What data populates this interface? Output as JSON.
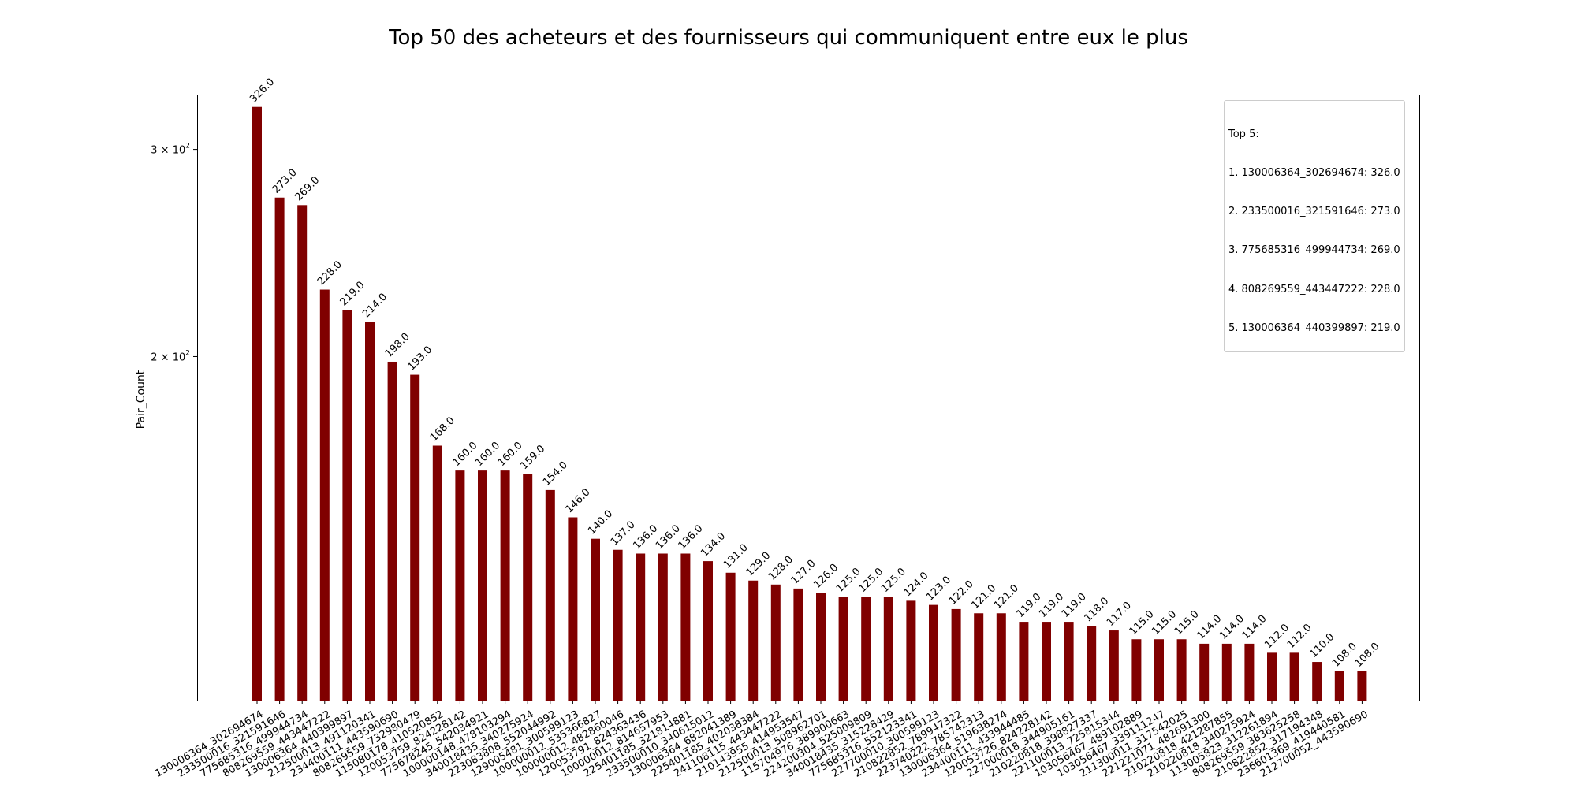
{
  "chart_data": {
    "type": "bar",
    "title": "Top 50 des acheteurs et des fournisseurs qui communiquent entre eux le plus",
    "xlabel": "",
    "ylabel": "Pair_Count",
    "yscale": "log",
    "ylim": [
      102,
      334
    ],
    "ytick_labels": [
      {
        "value": 200,
        "base": "2 × 10",
        "exp": "2"
      },
      {
        "value": 300,
        "base": "3 × 10",
        "exp": "2"
      }
    ],
    "bar_color": "#800000",
    "grid": false,
    "categories": [
      "130006364_302694674",
      "233500016_321591646",
      "775685316_499944734",
      "808269559_443447222",
      "130006364_440399897",
      "212500013_491120341",
      "234400111_443590690",
      "808269559_732980479",
      "115080178_410520852",
      "120053759_824228142",
      "775678245_542034921",
      "100000148_478103294",
      "340018435_340275924",
      "223083808_552044992",
      "129005481_300599123",
      "100000012_535366827",
      "100000012_482860046",
      "120053791_824363436",
      "100000012_814657953",
      "225401185_321814881",
      "233500010_340615012",
      "130006364_682041389",
      "225401185_402038384",
      "241108115_443447222",
      "210143955_414953547",
      "212500013_508962701",
      "115704976_389900663",
      "224200304_525009809",
      "340018435_315228429",
      "775685316_552123341",
      "227700010_300599123",
      "210822852_789947322",
      "223740222_785742313",
      "130006364_519638274",
      "234400111_433944485",
      "120053726_824228142",
      "227000018_344905161",
      "210220818_398827337",
      "221100013_725815344",
      "103056467_489102889",
      "103056467_339111247",
      "211300011_317542025",
      "221221071_482691300",
      "210220818_421287855",
      "210220818_340275924",
      "113005823_312261894",
      "808269559_383625258",
      "210822852_317194348",
      "236601369_419440581",
      "212700052_443590690"
    ],
    "values": [
      326.0,
      273.0,
      269.0,
      228.0,
      219.0,
      214.0,
      198.0,
      193.0,
      168.0,
      160.0,
      160.0,
      160.0,
      159.0,
      154.0,
      146.0,
      140.0,
      137.0,
      136.0,
      136.0,
      136.0,
      134.0,
      131.0,
      129.0,
      128.0,
      127.0,
      126.0,
      125.0,
      125.0,
      125.0,
      124.0,
      123.0,
      122.0,
      121.0,
      121.0,
      119.0,
      119.0,
      119.0,
      118.0,
      117.0,
      115.0,
      115.0,
      115.0,
      114.0,
      114.0,
      114.0,
      112.0,
      112.0,
      110.0,
      108.0,
      108.0
    ],
    "data_labels": [
      "326.0",
      "273.0",
      "269.0",
      "228.0",
      "219.0",
      "214.0",
      "198.0",
      "193.0",
      "168.0",
      "160.0",
      "160.0",
      "160.0",
      "159.0",
      "154.0",
      "146.0",
      "140.0",
      "137.0",
      "136.0",
      "136.0",
      "136.0",
      "134.0",
      "131.0",
      "129.0",
      "128.0",
      "127.0",
      "126.0",
      "125.0",
      "125.0",
      "125.0",
      "124.0",
      "123.0",
      "122.0",
      "121.0",
      "121.0",
      "119.0",
      "119.0",
      "119.0",
      "118.0",
      "117.0",
      "115.0",
      "115.0",
      "115.0",
      "114.0",
      "114.0",
      "114.0",
      "112.0",
      "112.0",
      "110.0",
      "108.0",
      "108.0"
    ],
    "legend": {
      "placement": "top-right",
      "lines": [
        "Top 5:",
        "1. 130006364_302694674: 326.0",
        "2. 233500016_321591646: 273.0",
        "3. 775685316_499944734: 269.0",
        "4. 808269559_443447222: 228.0",
        "5. 130006364_440399897: 219.0"
      ]
    }
  }
}
